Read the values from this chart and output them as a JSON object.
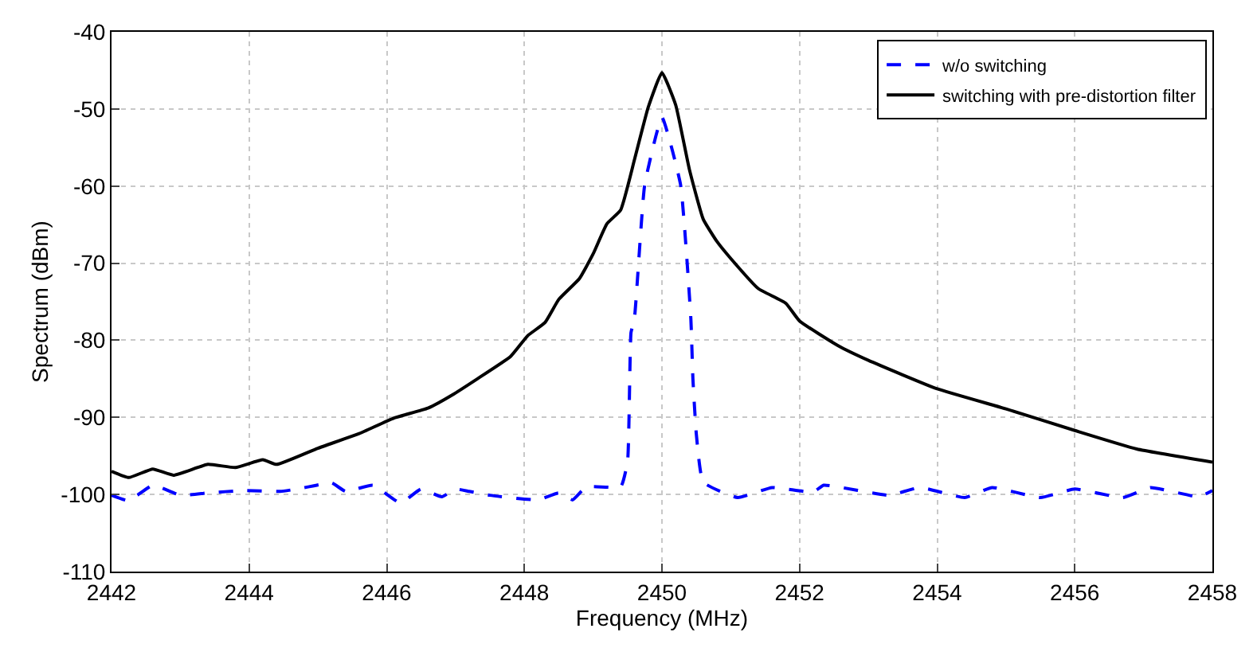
{
  "chart_data": {
    "type": "line",
    "xlabel": "Frequency (MHz)",
    "ylabel": "Spectrum (dBm)",
    "xlim": [
      2442,
      2458
    ],
    "ylim": [
      -110,
      -40
    ],
    "xticks": [
      2442,
      2444,
      2446,
      2448,
      2450,
      2452,
      2454,
      2456,
      2458
    ],
    "yticks": [
      -110,
      -100,
      -90,
      -80,
      -70,
      -60,
      -50,
      -40
    ],
    "grid": true,
    "legend": "top right",
    "marker": "none",
    "series": [
      {
        "name": "w/o switching",
        "color": "#0000ff",
        "line_style": "dashed",
        "x": [
          2442,
          2442.25,
          2442.6,
          2443,
          2443.4,
          2443.9,
          2444.45,
          2444.7,
          2445.2,
          2445.4,
          2445.8,
          2446.2,
          2446.5,
          2446.8,
          2447,
          2447.2,
          2447.5,
          2448.2,
          2448.5,
          2448.7,
          2448.9,
          2449.4,
          2449.5,
          2449.55,
          2449.6,
          2449.75,
          2450,
          2450.27,
          2450.42,
          2450.45,
          2450.5,
          2450.6,
          2451.1,
          2451.6,
          2452.2,
          2452.35,
          2453.3,
          2453.75,
          2454.4,
          2454.8,
          2455.5,
          2456,
          2456.7,
          2457.1,
          2457.8,
          2458
        ],
        "values": [
          -100.1,
          -100.8,
          -98.8,
          -100.1,
          -99.8,
          -99.5,
          -99.6,
          -99.3,
          -98.5,
          -99.6,
          -98.8,
          -101.1,
          -99.3,
          -100.3,
          -99.3,
          -99.6,
          -100.1,
          -100.7,
          -99.8,
          -100.7,
          -99,
          -99,
          -95.7,
          -79,
          -77.2,
          -59.8,
          -51.1,
          -59.8,
          -77.2,
          -85,
          -92.2,
          -98.4,
          -100.4,
          -99.1,
          -99.7,
          -98.8,
          -100.1,
          -99.1,
          -100.4,
          -99.1,
          -100.4,
          -99.3,
          -100.4,
          -99.1,
          -100.3,
          -99.5
        ]
      },
      {
        "name": "switching with pre-distortion filter",
        "color": "#000000",
        "line_style": "solid",
        "x": [
          2442,
          2442.25,
          2442.6,
          2442.9,
          2443.4,
          2443.8,
          2444.2,
          2444.4,
          2445,
          2445.6,
          2446.1,
          2446.6,
          2446.95,
          2447.3,
          2447.8,
          2448.05,
          2448.3,
          2448.5,
          2448.8,
          2449,
          2449.2,
          2449.4,
          2449.6,
          2449.8,
          2450,
          2450.2,
          2450.4,
          2450.6,
          2450.8,
          2451,
          2451.4,
          2451.8,
          2452,
          2452.56,
          2453,
          2454,
          2455,
          2456,
          2456.9,
          2458
        ],
        "values": [
          -97,
          -97.8,
          -96.7,
          -97.5,
          -96.1,
          -96.5,
          -95.5,
          -96.1,
          -94,
          -92.1,
          -90.1,
          -88.8,
          -87.1,
          -85.1,
          -82.1,
          -79.4,
          -77.7,
          -74.7,
          -72,
          -68.8,
          -64.9,
          -63.1,
          -56.6,
          -49.8,
          -45.3,
          -49.5,
          -57.9,
          -64.3,
          -67.2,
          -69.4,
          -73.3,
          -75.2,
          -77.5,
          -80.7,
          -82.6,
          -86.3,
          -88.9,
          -91.7,
          -94.1,
          -95.8
        ]
      }
    ]
  }
}
